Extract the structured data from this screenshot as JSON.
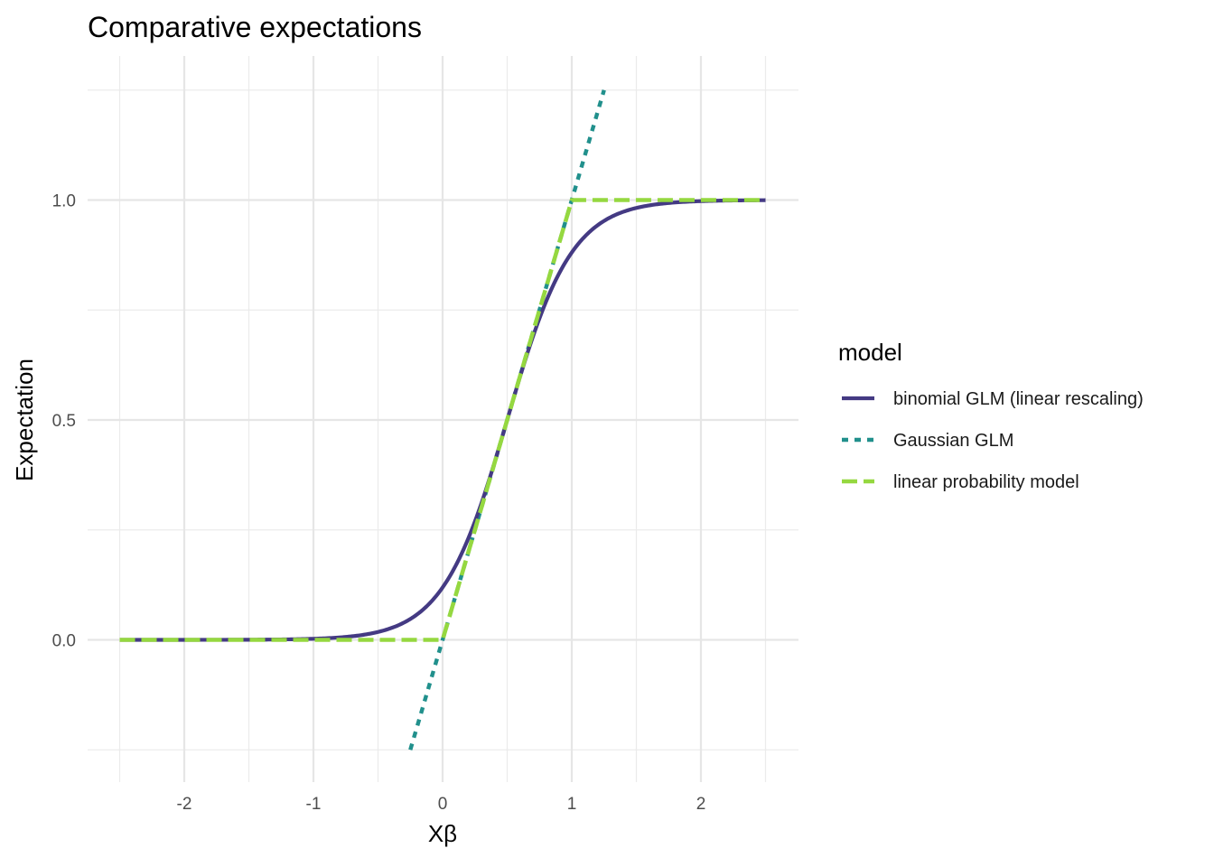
{
  "chart_data": {
    "type": "line",
    "title": "Comparative expectations",
    "xlabel": "Xβ",
    "ylabel": "Expectation",
    "xlim": [
      -2.5,
      2.5
    ],
    "ylim": [
      -0.25,
      1.25
    ],
    "x_major_ticks": [
      -2,
      -1,
      0,
      1,
      2
    ],
    "x_minor_ticks": [
      -2.5,
      -1.5,
      -0.5,
      0.5,
      1.5,
      2.5
    ],
    "y_major_ticks": [
      0.0,
      0.5,
      1.0
    ],
    "y_minor_ticks": [
      -0.25,
      0.25,
      0.75,
      1.25
    ],
    "x_tick_labels": [
      "-2",
      "-1",
      "0",
      "1",
      "2"
    ],
    "y_tick_labels": [
      "0.0",
      "0.5",
      "1.0"
    ],
    "grid": true,
    "legend": {
      "title": "model",
      "placement": "right",
      "entries": [
        "binomial GLM (linear rescaling)",
        "Gaussian GLM",
        "linear probability model"
      ]
    },
    "series": [
      {
        "name": "binomial GLM (linear rescaling)",
        "color": "#440154",
        "display_color": "#443a83",
        "dash": "solid",
        "x": [
          -2.5,
          -2.0,
          -1.5,
          -1.0,
          -0.75,
          -0.5,
          -0.25,
          0.0,
          0.125,
          0.25,
          0.375,
          0.5,
          0.625,
          0.75,
          0.875,
          1.0,
          1.25,
          1.5,
          2.0,
          2.5
        ],
        "y": [
          0.0,
          0.0003,
          0.0015,
          0.0067,
          0.0148,
          0.0323,
          0.069,
          0.1378,
          0.1881,
          0.2499,
          0.3208,
          0.5,
          0.6792,
          0.7501,
          0.8119,
          0.8622,
          0.931,
          0.9677,
          0.9933,
          1.0
        ]
      },
      {
        "name": "Gaussian GLM",
        "color": "#21908c",
        "dash": "dotted",
        "x": [
          -0.25,
          1.25
        ],
        "y": [
          -0.25,
          1.25
        ]
      },
      {
        "name": "linear probability model",
        "color": "#8fd744",
        "display_color": "#95d840",
        "dash": "dashed",
        "x": [
          -2.5,
          0.0,
          1.0,
          2.5
        ],
        "y": [
          0.0,
          0.0,
          1.0,
          1.0
        ]
      }
    ]
  }
}
